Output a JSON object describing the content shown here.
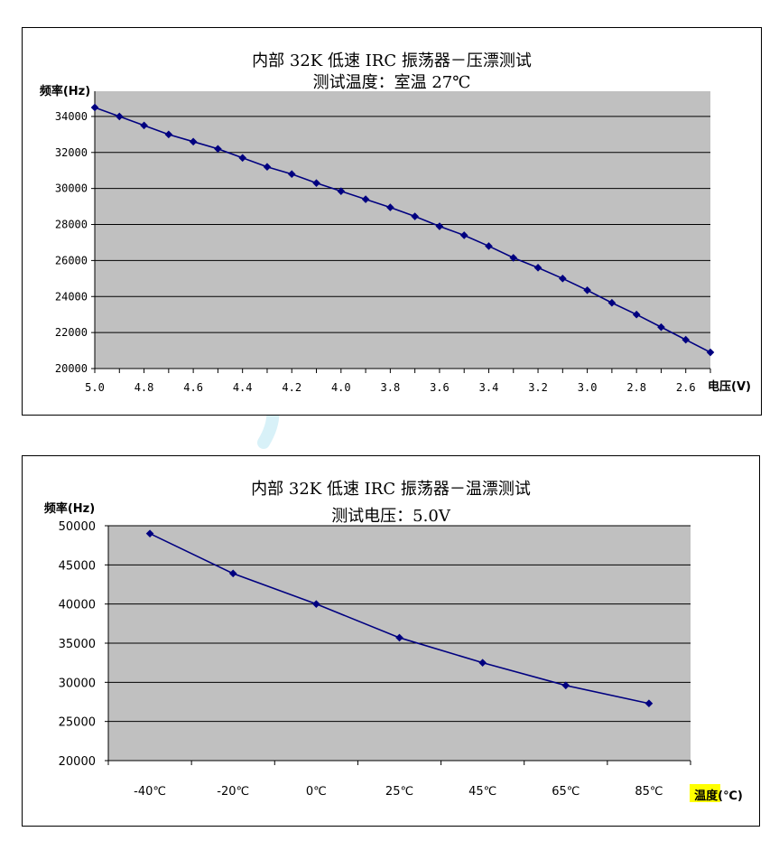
{
  "chart_data": [
    {
      "type": "line",
      "title": "内部 32K 低速 IRC 振荡器－压漂测试",
      "subtitle": "测试温度：室温 27℃",
      "xlabel": "电压(V)",
      "ylabel": "频率(Hz)",
      "x_tick_labels": [
        "5.0",
        "4.8",
        "4.6",
        "4.4",
        "4.2",
        "4.0",
        "3.8",
        "3.6",
        "3.4",
        "3.2",
        "3.0",
        "2.8",
        "2.6"
      ],
      "y_tick_labels": [
        "20000",
        "22000",
        "24000",
        "26000",
        "28000",
        "30000",
        "32000",
        "34000"
      ],
      "xlim": [
        5.0,
        2.5
      ],
      "ylim": [
        20000,
        35400
      ],
      "plot_background": "#c0c0c0",
      "line_color": "#000080",
      "grid": true,
      "series": [
        {
          "x": [
            5.0,
            4.9,
            4.8,
            4.7,
            4.6,
            4.5,
            4.4,
            4.3,
            4.2,
            4.1,
            4.0,
            3.9,
            3.8,
            3.7,
            3.6,
            3.5,
            3.4,
            3.3,
            3.2,
            3.1,
            3.0,
            2.9,
            2.8,
            2.7,
            2.6,
            2.5
          ],
          "values": [
            34500,
            34000,
            33500,
            33000,
            32600,
            32200,
            31700,
            31200,
            30800,
            30300,
            29850,
            29400,
            28950,
            28450,
            27900,
            27400,
            26800,
            26150,
            25600,
            25000,
            24350,
            23650,
            23000,
            22300,
            21600,
            20900
          ]
        }
      ]
    },
    {
      "type": "line",
      "title": "内部 32K 低速 IRC 振荡器－温漂测试",
      "subtitle": "测试电压：5.0V",
      "xlabel": "温度(℃)",
      "ylabel": "频率(Hz)",
      "categories": [
        "-40℃",
        "-20℃",
        "0℃",
        "25℃",
        "45℃",
        "65℃",
        "85℃"
      ],
      "y_tick_labels": [
        "20000",
        "25000",
        "30000",
        "35000",
        "40000",
        "45000",
        "50000"
      ],
      "ylim": [
        20000,
        50000
      ],
      "plot_background": "#c0c0c0",
      "line_color": "#000080",
      "highlight_color": "#ffff00",
      "grid": true,
      "series": [
        {
          "values": [
            49000,
            43900,
            40000,
            35700,
            32500,
            29600,
            27300
          ]
        }
      ]
    }
  ]
}
